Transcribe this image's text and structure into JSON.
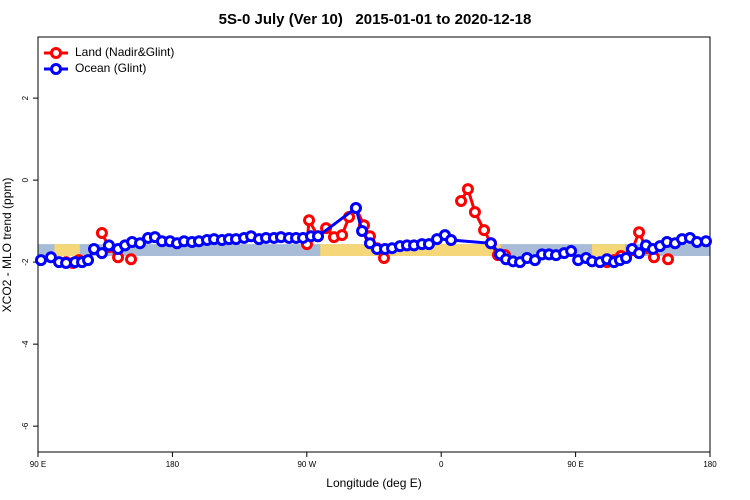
{
  "chart_data": {
    "type": "line",
    "title": "5S-0 July (Ver 10)   2015-01-01 to 2020-12-18",
    "xlabel": "Longitude (deg E)",
    "ylabel": "XCO2 - MLO trend (ppm)",
    "xlim": [
      90,
      540
    ],
    "ylim": [
      -6.63,
      3.49
    ],
    "xticks": [
      {
        "value": 90,
        "label": "90 E"
      },
      180,
      {
        "value": 270,
        "label": "90 W"
      },
      {
        "value": 360,
        "label": "0"
      },
      {
        "value": 450,
        "label": "90 E"
      },
      {
        "value": 540,
        "label": "180"
      }
    ],
    "yticks": [
      -6,
      -4,
      -2,
      0,
      2
    ],
    "legend": "top-left",
    "band": {
      "ylim": [
        -1.85,
        -1.56
      ],
      "color": "#a8bcd8",
      "land": [
        [
          101,
          118
        ],
        [
          279,
          400
        ],
        [
          461,
          483
        ]
      ],
      "land_color": "#f5d77a"
    },
    "series": [
      {
        "name": "Land (Nadir&Glint)",
        "color": "#ff0000",
        "x": [
          108.8,
          113.4,
          117.5,
          null,
          132.8,
          137.5,
          143.6,
          null,
          152.3,
          null,
          270.1,
          271.5,
          277.5,
          282.9,
          288.2,
          293.6,
          298.3,
          302.9,
          308.3,
          312.3,
          317.0,
          321.7,
          null,
          373.3,
          377.9,
          382.6,
          388.7,
          393.3,
          398.0,
          402.7,
          null,
          471.0,
          475.7,
          480.4,
          487.8,
          492.5,
          497.1,
          502.5,
          null,
          511.9
        ],
        "values": [
          -2.0,
          -2.02,
          -1.95,
          null,
          -1.29,
          -1.63,
          -1.88,
          null,
          -1.93,
          null,
          -1.56,
          -0.98,
          -1.37,
          -1.17,
          -1.39,
          -1.34,
          -0.9,
          -0.68,
          -1.1,
          -1.37,
          -1.66,
          -1.9,
          null,
          -0.51,
          -0.22,
          -0.78,
          -1.22,
          -1.54,
          -1.83,
          -1.83,
          null,
          -2.0,
          -1.95,
          -1.85,
          -1.71,
          -1.27,
          -1.66,
          -1.88,
          null,
          -1.93
        ]
      },
      {
        "name": "Ocean (Glint)",
        "color": "#0000ff",
        "x": [
          92.0,
          98.7,
          104.1,
          108.8,
          114.8,
          119.5,
          123.5,
          127.5,
          132.8,
          137.5,
          143.6,
          148.3,
          153.0,
          158.3,
          163.7,
          168.3,
          173.0,
          178.4,
          183.1,
          187.8,
          193.1,
          197.8,
          203.2,
          207.9,
          213.2,
          217.9,
          222.6,
          228.0,
          232.7,
          238.0,
          242.7,
          248.0,
          252.7,
          258.1,
          262.8,
          267.5,
          272.8,
          277.5,
          302.9,
          307.0,
          312.3,
          317.0,
          322.4,
          327.1,
          332.4,
          337.1,
          341.8,
          347.1,
          351.8,
          357.2,
          362.5,
          366.6,
          393.3,
          399.4,
          403.4,
          408.1,
          412.8,
          417.5,
          422.8,
          427.5,
          432.2,
          436.9,
          442.3,
          447.0,
          451.7,
          457.0,
          461.0,
          466.3,
          471.0,
          475.7,
          479.7,
          483.8,
          487.8,
          492.5,
          497.1,
          501.8,
          506.5,
          511.2,
          516.6,
          521.3,
          526.6,
          531.3,
          537.3
        ],
        "values": [
          -1.95,
          -1.88,
          -2.0,
          -2.02,
          -2.0,
          -2.0,
          -1.95,
          -1.68,
          -1.78,
          -1.59,
          -1.68,
          -1.59,
          -1.51,
          -1.54,
          -1.41,
          -1.39,
          -1.49,
          -1.49,
          -1.54,
          -1.49,
          -1.51,
          -1.49,
          -1.46,
          -1.44,
          -1.46,
          -1.44,
          -1.44,
          -1.41,
          -1.37,
          -1.44,
          -1.41,
          -1.41,
          -1.39,
          -1.41,
          -1.41,
          -1.41,
          -1.37,
          -1.37,
          -0.68,
          -1.24,
          -1.54,
          -1.68,
          -1.68,
          -1.66,
          -1.61,
          -1.59,
          -1.59,
          -1.56,
          -1.56,
          -1.44,
          -1.34,
          -1.46,
          -1.54,
          -1.81,
          -1.93,
          -1.98,
          -2.0,
          -1.9,
          -1.95,
          -1.81,
          -1.81,
          -1.83,
          -1.78,
          -1.73,
          -1.95,
          -1.9,
          -1.98,
          -2.0,
          -1.93,
          -2.0,
          -1.95,
          -1.9,
          -1.68,
          -1.78,
          -1.59,
          -1.68,
          -1.61,
          -1.51,
          -1.54,
          -1.44,
          -1.41,
          -1.51,
          -1.49
        ]
      }
    ]
  }
}
